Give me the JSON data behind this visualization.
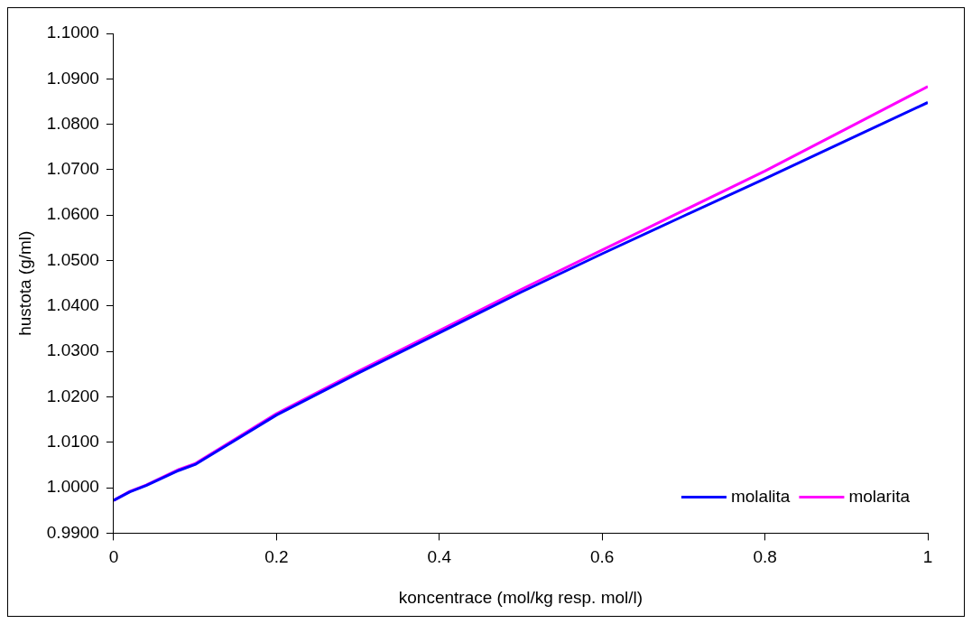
{
  "chart_data": {
    "type": "line",
    "xlabel": "koncentrace (mol/kg resp. mol/l)",
    "ylabel": "hustota (g/ml)",
    "x": [
      0,
      0.02,
      0.04,
      0.08,
      0.1,
      0.2,
      0.3,
      0.4,
      0.5,
      0.6,
      0.7,
      0.8,
      0.9,
      1
    ],
    "series": [
      {
        "name": "molalita",
        "color": "#0000ff",
        "values": [
          0.9972,
          0.9991,
          1.0005,
          1.0038,
          1.0051,
          1.016,
          1.0252,
          1.0341,
          1.043,
          1.0515,
          1.0598,
          1.068,
          1.0764,
          1.0848
        ]
      },
      {
        "name": "molarita",
        "color": "#ff00ff",
        "values": [
          0.9972,
          0.9992,
          1.0006,
          1.004,
          1.0053,
          1.0163,
          1.0256,
          1.0346,
          1.0436,
          1.0523,
          1.061,
          1.0697,
          1.079,
          1.0883
        ]
      }
    ],
    "xlim": [
      0,
      1
    ],
    "xticks": [
      0,
      {
        "value": 0.2,
        "label": "0.2"
      },
      {
        "value": 0.4,
        "label": "0.4"
      },
      {
        "value": 0.6,
        "label": "0.6"
      },
      {
        "value": 0.8,
        "label": "0.8"
      },
      1
    ],
    "ylim": [
      0.99,
      1.1
    ],
    "yticks": [
      {
        "value": 0.99,
        "label": "0.9900"
      },
      {
        "value": 1,
        "label": "1.0000"
      },
      {
        "value": 1.01,
        "label": "1.0100"
      },
      {
        "value": 1.02,
        "label": "1.0200"
      },
      {
        "value": 1.03,
        "label": "1.0300"
      },
      {
        "value": 1.04,
        "label": "1.0400"
      },
      {
        "value": 1.05,
        "label": "1.0500"
      },
      {
        "value": 1.06,
        "label": "1.0600"
      },
      {
        "value": 1.07,
        "label": "1.0700"
      },
      {
        "value": 1.08,
        "label": "1.0800"
      },
      {
        "value": 1.09,
        "label": "1.0900"
      },
      {
        "value": 1.1,
        "label": "1.1000"
      }
    ],
    "grid": false,
    "legend": "bottom right",
    "marker": "none",
    "line_style": "solid"
  }
}
